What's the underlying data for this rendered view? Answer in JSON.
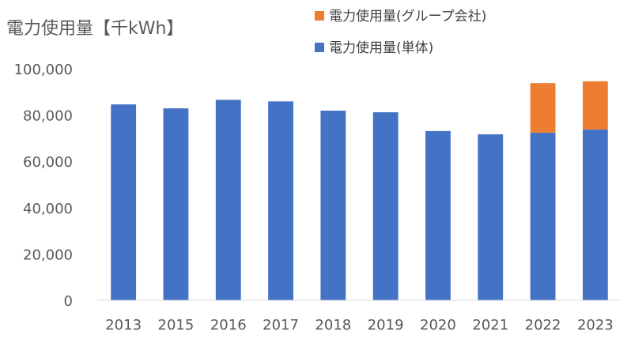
{
  "chart_data": {
    "type": "bar",
    "stacked": true,
    "title": "電力使用量【千kWh】",
    "categories": [
      "2013",
      "2015",
      "2016",
      "2017",
      "2018",
      "2019",
      "2020",
      "2021",
      "2022",
      "2023"
    ],
    "series": [
      {
        "name": "電力使用量(単体)",
        "color": "#4472C4",
        "values": [
          84600,
          82900,
          86600,
          85900,
          81900,
          81200,
          73100,
          71700,
          72400,
          73800
        ]
      },
      {
        "name": "電力使用量(グループ会社)",
        "color": "#ED7D31",
        "values": [
          0,
          0,
          0,
          0,
          0,
          0,
          0,
          0,
          21400,
          20800
        ]
      }
    ],
    "ylim": [
      0,
      100000
    ],
    "yticks": [
      "0",
      "20,000",
      "40,000",
      "60,000",
      "80,000",
      "100,000"
    ],
    "grid": false,
    "legend_position": "top-right"
  }
}
